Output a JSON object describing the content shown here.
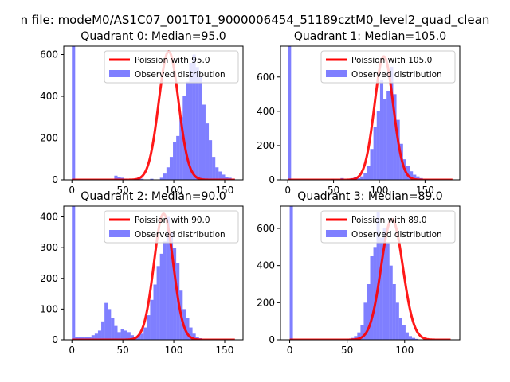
{
  "figure": {
    "suptitle": "n file: modeM0/AS1C07_001T01_9000006454_51189cztM0_level2_quad_clean"
  },
  "colors": {
    "fit": "#ff0000",
    "hist": "#0000ff",
    "axis": "#000000",
    "legend_border": "#cccccc"
  },
  "chart_data": [
    {
      "type": "bar",
      "title": "Quadrant 0: Median=95.0",
      "xlim": [
        -8,
        168
      ],
      "ylim": [
        0,
        640
      ],
      "xticks": [
        0,
        50,
        100,
        150
      ],
      "yticks": [
        0,
        200,
        400,
        600
      ],
      "legend_position": "top-right",
      "legend": [
        "Poission with 95.0",
        "Observed distribution"
      ],
      "poisson_mean": 95.0,
      "poisson_peak": 615,
      "bin_start": 0,
      "bin_width": 3.2,
      "counts": [
        640,
        0,
        0,
        0,
        0,
        0,
        0,
        0,
        0,
        0,
        0,
        0,
        0,
        20,
        15,
        10,
        5,
        0,
        0,
        5,
        10,
        5,
        0,
        0,
        5,
        0,
        0,
        10,
        30,
        60,
        110,
        180,
        210,
        300,
        400,
        470,
        560,
        600,
        540,
        500,
        360,
        270,
        190,
        110,
        60,
        40,
        25,
        15,
        10,
        5,
        0
      ]
    },
    {
      "type": "bar",
      "title": "Quadrant 1: Median=105.0",
      "xlim": [
        -8,
        188
      ],
      "ylim": [
        0,
        780
      ],
      "xticks": [
        0,
        50,
        100,
        150
      ],
      "yticks": [
        0,
        200,
        400,
        600
      ],
      "legend_position": "top-right",
      "legend": [
        "Poission with 105.0",
        "Observed distribution"
      ],
      "poisson_mean": 105.0,
      "poisson_peak": 720,
      "bin_start": 0,
      "bin_width": 3.6,
      "counts": [
        780,
        0,
        0,
        0,
        0,
        0,
        0,
        0,
        0,
        0,
        0,
        0,
        0,
        5,
        0,
        0,
        10,
        0,
        5,
        10,
        15,
        10,
        20,
        40,
        80,
        180,
        310,
        400,
        580,
        470,
        520,
        660,
        500,
        350,
        210,
        120,
        80,
        50,
        30,
        20,
        10,
        5,
        5,
        0,
        0,
        0,
        0,
        0,
        0,
        0
      ]
    },
    {
      "type": "bar",
      "title": "Quadrant 2: Median=90.0",
      "xlim": [
        -8,
        168
      ],
      "ylim": [
        0,
        435
      ],
      "xticks": [
        0,
        50,
        100,
        150
      ],
      "yticks": [
        0,
        100,
        200,
        300,
        400
      ],
      "legend_position": "top-right",
      "legend": [
        "Poission with 90.0",
        "Observed distribution"
      ],
      "poisson_mean": 90.0,
      "poisson_peak": 410,
      "bin_start": 0,
      "bin_width": 3.2,
      "counts": [
        435,
        10,
        10,
        10,
        10,
        10,
        15,
        20,
        30,
        60,
        120,
        100,
        70,
        45,
        25,
        35,
        30,
        25,
        15,
        10,
        15,
        20,
        40,
        80,
        130,
        180,
        240,
        280,
        320,
        400,
        350,
        300,
        250,
        160,
        100,
        70,
        40,
        20,
        10,
        5,
        0,
        0,
        0,
        0,
        0,
        0,
        0,
        0,
        0,
        0
      ]
    },
    {
      "type": "bar",
      "title": "Quadrant 3: Median=89.0",
      "xlim": [
        -8,
        148
      ],
      "ylim": [
        0,
        720
      ],
      "xticks": [
        0,
        50,
        100
      ],
      "yticks": [
        0,
        200,
        400,
        600
      ],
      "legend_position": "top-right",
      "legend": [
        "Poission with 89.0",
        "Observed distribution"
      ],
      "poisson_mean": 89.0,
      "poisson_peak": 650,
      "bin_start": 0,
      "bin_width": 2.8,
      "counts": [
        720,
        0,
        0,
        0,
        0,
        0,
        0,
        0,
        0,
        0,
        0,
        0,
        0,
        0,
        0,
        0,
        0,
        0,
        5,
        10,
        20,
        40,
        80,
        200,
        300,
        450,
        500,
        690,
        550,
        600,
        520,
        400,
        300,
        200,
        120,
        80,
        40,
        20,
        10,
        5,
        0,
        0,
        0,
        0,
        0
      ]
    }
  ]
}
